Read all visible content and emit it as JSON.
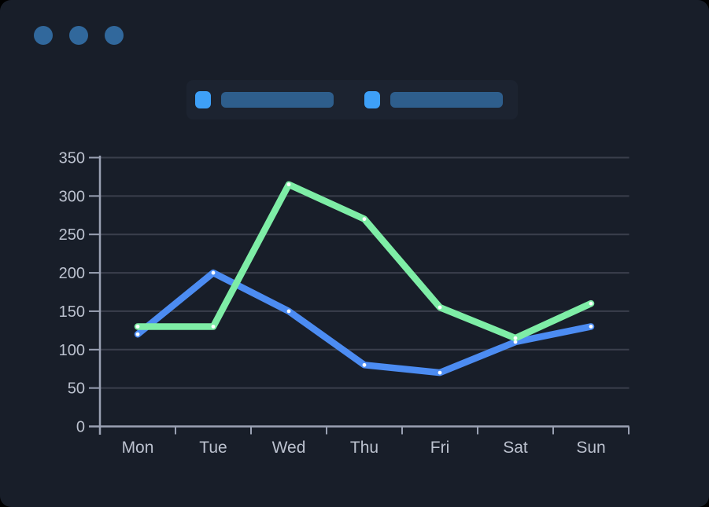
{
  "theme": {
    "page_bg": "#000000",
    "card_bg": "#181e29",
    "legend_panel_bg": "#1c2330",
    "window_dot_color": "#31689c",
    "axis_color": "#9aa1b3",
    "grid_color": "#3a3f4c",
    "tick_label_color": "#bcc2cf",
    "marker_color": "#ffffff",
    "legend_swatch_color": "#3ea0f8",
    "legend_label_bar_color": "#2e5e8c"
  },
  "window": {
    "title": ""
  },
  "legend": {
    "position": "top",
    "items": [
      {
        "id": "series-1",
        "label": ""
      },
      {
        "id": "series-2",
        "label": ""
      }
    ]
  },
  "chart_data": {
    "type": "line",
    "title": "",
    "xlabel": "",
    "ylabel": "",
    "categories": [
      "Mon",
      "Tue",
      "Wed",
      "Thu",
      "Fri",
      "Sat",
      "Sun"
    ],
    "series": [
      {
        "name": "series-1",
        "color": "#4c8cf2",
        "values": [
          120,
          200,
          150,
          80,
          70,
          110,
          130
        ]
      },
      {
        "name": "series-2",
        "color": "#7eeda6",
        "values": [
          130,
          130,
          315,
          270,
          155,
          115,
          160
        ]
      }
    ],
    "ylim": [
      0,
      350
    ],
    "ytick_step": 50,
    "grid": "horizontal-only",
    "legend_position": "top",
    "markers": "white-dots",
    "draw_order": "series-2 on top of series-1"
  }
}
